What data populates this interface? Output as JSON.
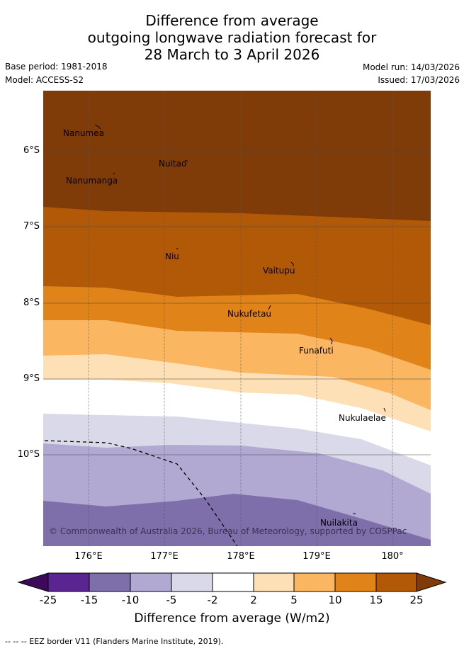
{
  "title": {
    "line1": "Difference from average",
    "line2": "outgoing longwave radiation forecast for",
    "line3": "28 March to 3 April 2026"
  },
  "meta": {
    "base_period": "Base period: 1981-2018",
    "model": "Model: ACCESS-S2",
    "model_run": "Model run: 14/03/2026",
    "issued": "Issued: 17/03/2026"
  },
  "map": {
    "lat_labels": [
      "6°S",
      "7°S",
      "8°S",
      "9°S",
      "10°S"
    ],
    "lon_labels": [
      "176°E",
      "177°E",
      "178°E",
      "179°E",
      "180°"
    ],
    "places": [
      "Nanumea",
      "Nuitao",
      "Nanumanga",
      "Niu",
      "Vaitupu",
      "Nukufetau",
      "Funafuti",
      "Nukulaelae",
      "Nuilakita"
    ],
    "credit": "© Commonwealth of Australia 2026, Bureau of Meteorology, supported by COSPPac"
  },
  "colorbar": {
    "ticks": [
      "-25",
      "-15",
      "-10",
      "-5",
      "-2",
      "2",
      "5",
      "10",
      "15",
      "25"
    ],
    "label": "Difference from average (W/m2)",
    "colors": [
      "#3d0a5a",
      "#5a2590",
      "#7e6fab",
      "#b1a9d2",
      "#d9d9ea",
      "#ffffff",
      "#fde0b6",
      "#fab660",
      "#e08319",
      "#b25908",
      "#7f3c08"
    ]
  },
  "footer": "--  --  -- EEZ border V11 (Flanders Marine Institute, 2019)."
}
